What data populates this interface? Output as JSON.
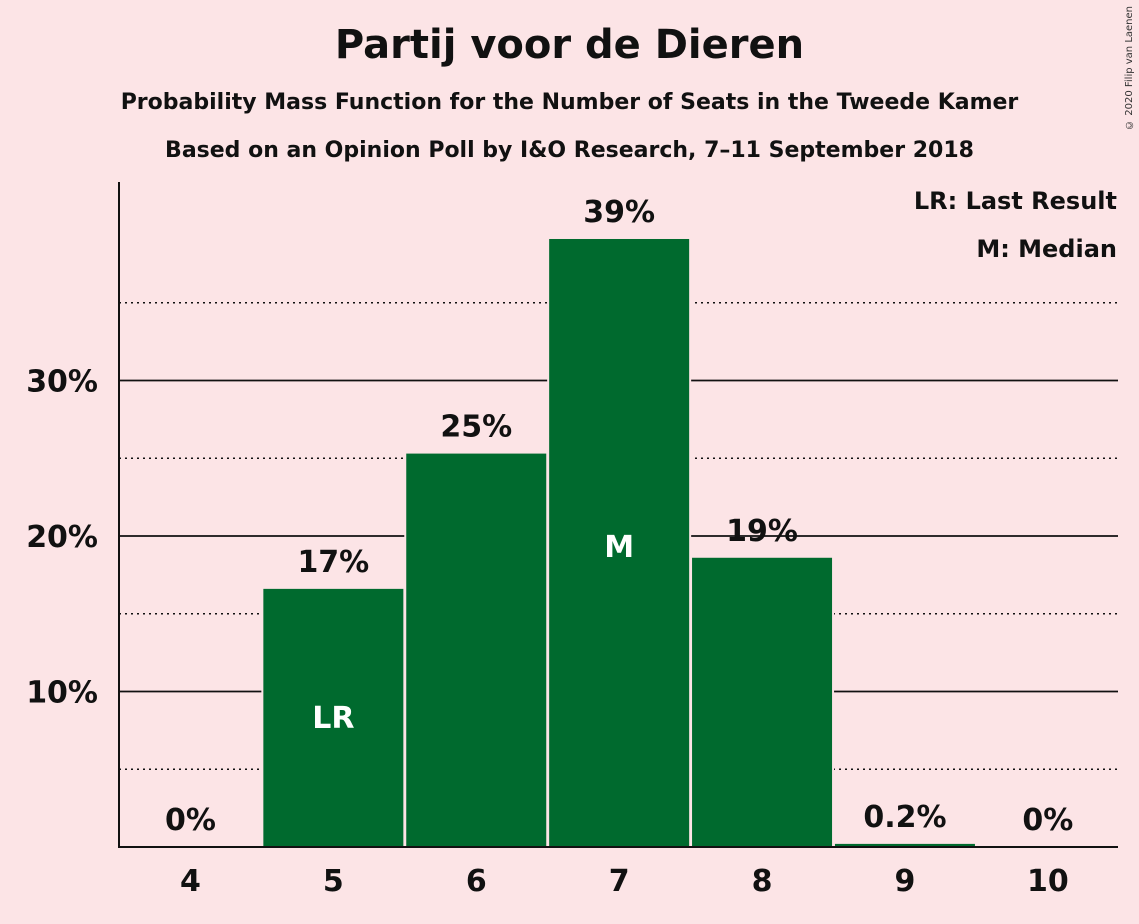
{
  "title": "Partij voor de Dieren",
  "subtitle_1": "Probability Mass Function for the Number of Seats in the Tweede Kamer",
  "subtitle_2": "Based on an Opinion Poll by I&O Research, 7–11 September 2018",
  "copyright": "© 2020 Filip van Laenen",
  "legend": {
    "last_result": "LR: Last Result",
    "median": "M: Median"
  },
  "colors": {
    "bar": "#006a2e",
    "background": "#fce4e6",
    "text": "#111111"
  },
  "chart_data": {
    "type": "bar",
    "categories": [
      "4",
      "5",
      "6",
      "7",
      "8",
      "9",
      "10"
    ],
    "values": [
      0,
      16.6,
      25.3,
      39.1,
      18.6,
      0.2,
      0
    ],
    "data_labels": [
      "0%",
      "17%",
      "25%",
      "39%",
      "19%",
      "0.2%",
      "0%"
    ],
    "markers": {
      "5": "LR",
      "7": "M"
    },
    "ylim": [
      0,
      42
    ],
    "yticks_major": [
      10,
      20,
      30
    ],
    "ytick_labels": [
      "10%",
      "20%",
      "30%"
    ],
    "yticks_minor": [
      5,
      15,
      25,
      35
    ],
    "grid": true,
    "legend_position": "top-right"
  }
}
